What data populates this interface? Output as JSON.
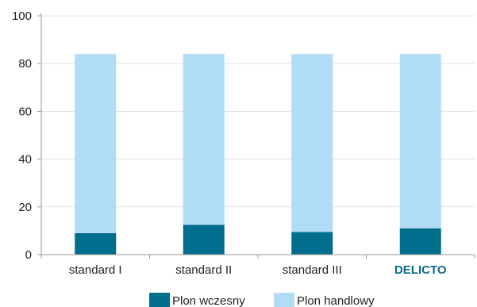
{
  "chart_data": {
    "type": "bar",
    "stacked": true,
    "categories": [
      "standard I",
      "standard II",
      "standard III",
      "DELICTO"
    ],
    "highlighted_category": "DELICTO",
    "series": [
      {
        "name": "Plon wczesny",
        "values": [
          9,
          12.5,
          9.5,
          11
        ],
        "color": "#006e8c"
      },
      {
        "name": "Plon handlowy",
        "values": [
          75,
          71.5,
          74.5,
          73
        ],
        "color": "#b0dcf5"
      }
    ],
    "ylim": [
      0,
      100
    ],
    "yticks": [
      0,
      20,
      40,
      60,
      80,
      100
    ],
    "grid": true,
    "legend_position": "bottom-center",
    "colors": {
      "highlight_label": "#0a6a8a",
      "grid": "#e2e2e2",
      "axis": "#9a9a9a"
    }
  }
}
